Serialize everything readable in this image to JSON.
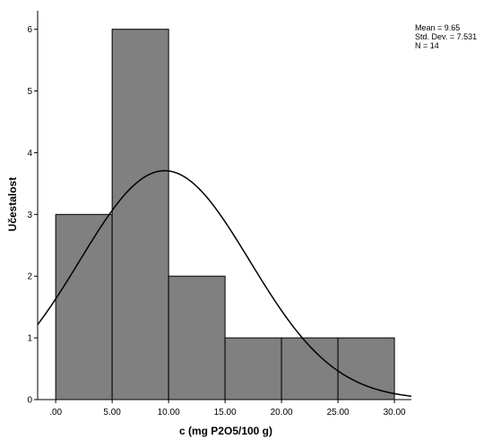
{
  "chart_data": {
    "type": "bar",
    "subtype": "histogram",
    "xlabel": "c (mg P2O5/100 g)",
    "ylabel": "Učestalost",
    "bins": [
      {
        "from": 0,
        "to": 5,
        "value": 3
      },
      {
        "from": 5,
        "to": 10,
        "value": 6
      },
      {
        "from": 10,
        "to": 15,
        "value": 2
      },
      {
        "from": 15,
        "to": 20,
        "value": 1
      },
      {
        "from": 20,
        "to": 25,
        "value": 1
      },
      {
        "from": 25,
        "to": 30,
        "value": 1
      }
    ],
    "xlim": [
      -1.6,
      31.5
    ],
    "ylim": [
      0,
      6.3
    ],
    "x_ticks": [
      ".00",
      "5.00",
      "10.00",
      "15.00",
      "20.00",
      "25.00",
      "30.00"
    ],
    "y_ticks": [
      "0",
      "1",
      "2",
      "3",
      "4",
      "5",
      "6"
    ],
    "normal_curve": {
      "mean": 9.65,
      "std_dev": 7.531,
      "n": 14,
      "bin_width": 5
    },
    "stats": {
      "mean": "Mean = 9.65",
      "std_dev": "Std. Dev. = 7.531",
      "n": "N = 14"
    },
    "colors": {
      "bar_fill": "#808080",
      "bar_stroke": "#000000",
      "curve": "#000000"
    },
    "grid": false
  }
}
